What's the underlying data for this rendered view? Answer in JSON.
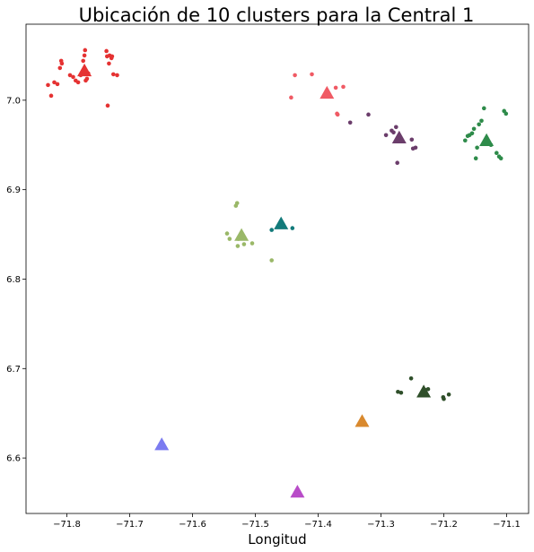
{
  "chart_data": {
    "type": "scatter",
    "title": "Ubicación de 10 clusters para la Central 1",
    "xlabel": "Longitud",
    "ylabel": "",
    "xlim": [
      -71.865,
      -71.065
    ],
    "ylim": [
      6.538,
      7.085
    ],
    "x_ticks": [
      -71.8,
      -71.7,
      -71.6,
      -71.5,
      -71.4,
      -71.3,
      -71.2,
      -71.1
    ],
    "x_tick_labels": [
      "−71.8",
      "−71.7",
      "−71.6",
      "−71.5",
      "−71.4",
      "−71.3",
      "−71.2",
      "−71.1"
    ],
    "y_ticks": [
      6.6,
      6.7,
      6.8,
      6.9,
      7.0
    ],
    "y_tick_labels": [
      "6.6",
      "6.7",
      "6.8",
      "6.9",
      "7.0"
    ],
    "grid": false,
    "legend": "none",
    "clusters": [
      {
        "color": "#e53232",
        "centroid": [
          -71.772,
          7.033
        ],
        "points": [
          [
            -71.83,
            7.017
          ],
          [
            -71.825,
            7.005
          ],
          [
            -71.82,
            7.02
          ],
          [
            -71.815,
            7.018
          ],
          [
            -71.811,
            7.036
          ],
          [
            -71.809,
            7.044
          ],
          [
            -71.808,
            7.041
          ],
          [
            -71.795,
            7.028
          ],
          [
            -71.79,
            7.026
          ],
          [
            -71.786,
            7.022
          ],
          [
            -71.782,
            7.02
          ],
          [
            -71.778,
            7.028
          ],
          [
            -71.774,
            7.044
          ],
          [
            -71.772,
            7.05
          ],
          [
            -71.771,
            7.056
          ],
          [
            -71.77,
            7.022
          ],
          [
            -71.768,
            7.024
          ],
          [
            -71.766,
            7.03
          ],
          [
            -71.737,
            7.055
          ],
          [
            -71.736,
            7.049
          ],
          [
            -71.735,
            6.994
          ],
          [
            -71.733,
            7.041
          ],
          [
            -71.732,
            7.05
          ],
          [
            -71.729,
            7.047
          ],
          [
            -71.728,
            7.049
          ],
          [
            -71.726,
            7.029
          ],
          [
            -71.72,
            7.028
          ]
        ]
      },
      {
        "color": "#f05a64",
        "centroid": [
          -71.386,
          7.008
        ],
        "points": [
          [
            -71.443,
            7.003
          ],
          [
            -71.437,
            7.028
          ],
          [
            -71.41,
            7.029
          ],
          [
            -71.372,
            7.014
          ],
          [
            -71.37,
            6.985
          ],
          [
            -71.369,
            6.984
          ],
          [
            -71.36,
            7.015
          ]
        ]
      },
      {
        "color": "#6b3d6b",
        "centroid": [
          -71.271,
          6.958
        ],
        "points": [
          [
            -71.349,
            6.975
          ],
          [
            -71.32,
            6.984
          ],
          [
            -71.292,
            6.961
          ],
          [
            -71.283,
            6.966
          ],
          [
            -71.28,
            6.964
          ],
          [
            -71.276,
            6.97
          ],
          [
            -71.274,
            6.93
          ],
          [
            -71.251,
            6.956
          ],
          [
            -71.249,
            6.946
          ],
          [
            -71.245,
            6.947
          ]
        ]
      },
      {
        "color": "#2e8b4a",
        "centroid": [
          -71.132,
          6.955
        ],
        "points": [
          [
            -71.166,
            6.955
          ],
          [
            -71.162,
            6.96
          ],
          [
            -71.159,
            6.961
          ],
          [
            -71.155,
            6.963
          ],
          [
            -71.152,
            6.968
          ],
          [
            -71.149,
            6.935
          ],
          [
            -71.147,
            6.947
          ],
          [
            -71.144,
            6.973
          ],
          [
            -71.14,
            6.977
          ],
          [
            -71.136,
            6.991
          ],
          [
            -71.125,
            6.95
          ],
          [
            -71.116,
            6.941
          ],
          [
            -71.112,
            6.937
          ],
          [
            -71.109,
            6.935
          ],
          [
            -71.104,
            6.988
          ],
          [
            -71.101,
            6.985
          ]
        ]
      },
      {
        "color": "#9ab868",
        "centroid": [
          -71.522,
          6.849
        ],
        "points": [
          [
            -71.545,
            6.851
          ],
          [
            -71.541,
            6.845
          ],
          [
            -71.531,
            6.882
          ],
          [
            -71.529,
            6.885
          ],
          [
            -71.528,
            6.837
          ],
          [
            -71.527,
            6.845
          ],
          [
            -71.518,
            6.839
          ],
          [
            -71.505,
            6.84
          ],
          [
            -71.474,
            6.821
          ]
        ]
      },
      {
        "color": "#127a7a",
        "centroid": [
          -71.459,
          6.862
        ],
        "points": [
          [
            -71.474,
            6.855
          ],
          [
            -71.441,
            6.857
          ]
        ]
      },
      {
        "color": "#2f4f2a",
        "centroid": [
          -71.232,
          6.674
        ],
        "points": [
          [
            -71.273,
            6.674
          ],
          [
            -71.268,
            6.673
          ],
          [
            -71.252,
            6.689
          ],
          [
            -71.229,
            6.676
          ],
          [
            -71.225,
            6.677
          ],
          [
            -71.201,
            6.668
          ],
          [
            -71.2,
            6.666
          ],
          [
            -71.192,
            6.671
          ]
        ]
      },
      {
        "color": "#d9892e",
        "centroid": [
          -71.33,
          6.641
        ],
        "points": []
      },
      {
        "color": "#7b7bf0",
        "centroid": [
          -71.649,
          6.615
        ],
        "points": []
      },
      {
        "color": "#b84cc8",
        "centroid": [
          -71.433,
          6.562
        ],
        "points": []
      }
    ]
  }
}
